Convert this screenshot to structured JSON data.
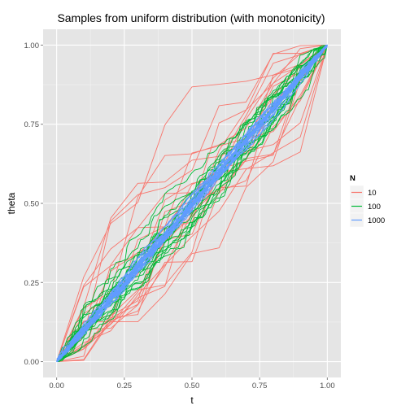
{
  "chart_data": {
    "type": "line",
    "title": "Samples from uniform distribution (with monotonicity)",
    "xlabel": "t",
    "ylabel": "theta",
    "xlim": [
      -0.05,
      1.05
    ],
    "ylim": [
      -0.05,
      1.05
    ],
    "x_ticks": [
      "0.00",
      "0.25",
      "0.50",
      "0.75",
      "1.00"
    ],
    "y_ticks": [
      "0.00",
      "0.25",
      "0.50",
      "0.75",
      "1.00"
    ],
    "grid": true,
    "legend": {
      "title": "N",
      "position": "right",
      "entries": [
        "10",
        "100",
        "1000"
      ]
    },
    "series": [
      {
        "name": "10",
        "color": "#F8766D",
        "n_points": 10,
        "n_curves": 20,
        "example_curve": [
          [
            0,
            0
          ],
          [
            0.1,
            0.04
          ],
          [
            0.2,
            0.12
          ],
          [
            0.3,
            0.22
          ],
          [
            0.4,
            0.38
          ],
          [
            0.5,
            0.46
          ],
          [
            0.6,
            0.58
          ],
          [
            0.7,
            0.71
          ],
          [
            0.8,
            0.84
          ],
          [
            0.9,
            0.93
          ],
          [
            1,
            1
          ]
        ]
      },
      {
        "name": "100",
        "color": "#00BA38",
        "n_points": 100,
        "n_curves": 20
      },
      {
        "name": "1000",
        "color": "#619CFF",
        "n_points": 1000,
        "n_curves": 20
      }
    ]
  },
  "colors": {
    "panel_bg": "#E5E5E5",
    "grid_major": "#FFFFFF",
    "grid_minor": "#F2F2F2"
  }
}
